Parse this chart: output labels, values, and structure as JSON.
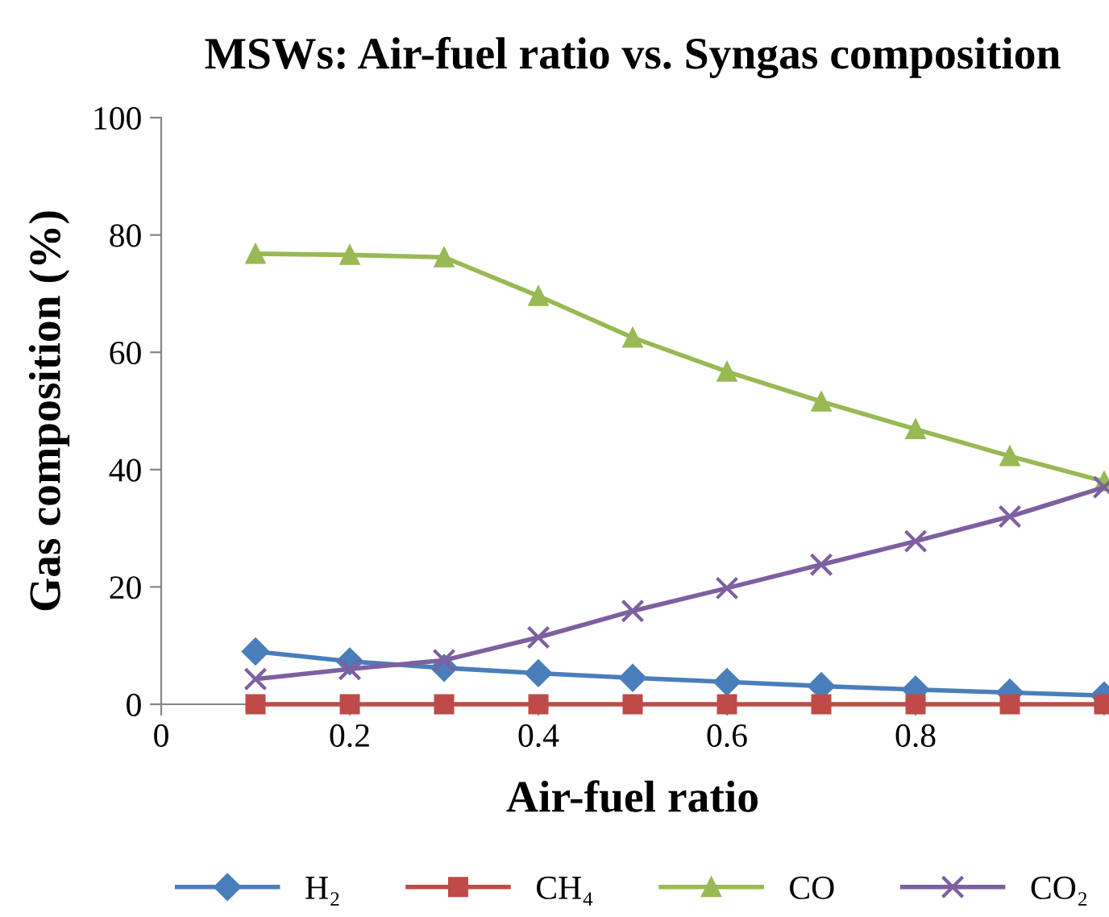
{
  "chart_data": {
    "type": "line",
    "title": "MSWs: Air-fuel ratio vs. Syngas composition",
    "xlabel": "Air-fuel ratio",
    "ylabel": "Gas composition (%)",
    "x": [
      0.1,
      0.2,
      0.3,
      0.4,
      0.5,
      0.6,
      0.7,
      0.8,
      0.9,
      1.0
    ],
    "series": [
      {
        "name": "H₂",
        "color": "#4a7ebb",
        "marker": "diamond",
        "values": [
          9,
          7.3,
          6.2,
          5.3,
          4.5,
          3.8,
          3.1,
          2.5,
          2,
          1.5
        ]
      },
      {
        "name": "CH₄",
        "color": "#be4b48",
        "marker": "square",
        "values": [
          0,
          0,
          0,
          0,
          0,
          0,
          0,
          0,
          0,
          0
        ]
      },
      {
        "name": "CO",
        "color": "#98b954",
        "marker": "triangle",
        "values": [
          76.8,
          76.6,
          76.2,
          69.6,
          62.5,
          56.7,
          51.6,
          46.9,
          42.3,
          38
        ]
      },
      {
        "name": "CO₂",
        "color": "#7d60a0",
        "marker": "cross",
        "values": [
          4.3,
          6,
          7.5,
          11.4,
          15.9,
          19.8,
          23.8,
          27.8,
          32,
          37
        ]
      }
    ],
    "xlim": [
      0,
      1
    ],
    "xticks": [
      0,
      0.2,
      0.4,
      0.6,
      0.8,
      {
        "value": 1,
        "label": null
      }
    ],
    "ylim": [
      0,
      100
    ],
    "yticks": [
      0,
      20,
      40,
      60,
      80,
      100
    ],
    "grid": false,
    "legend": "bottom",
    "line_style": "solid"
  }
}
